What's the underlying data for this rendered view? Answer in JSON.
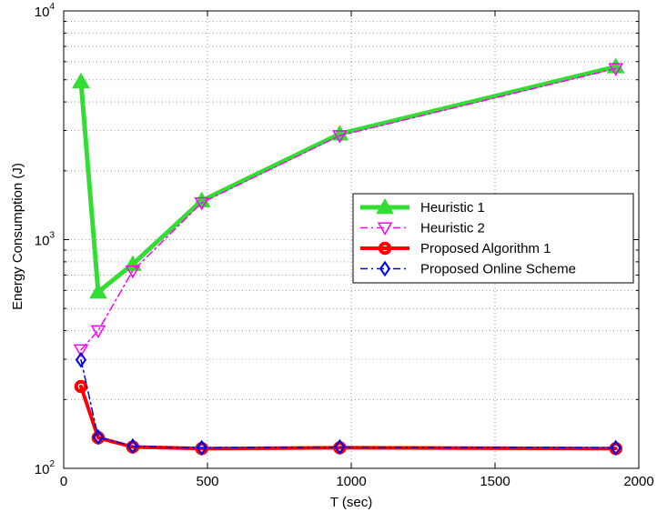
{
  "chart_data": {
    "type": "line",
    "title": "",
    "xlabel": "T (sec)",
    "ylabel": "Energy Consumption (J)",
    "xlim": [
      0,
      2000
    ],
    "ylim": [
      100,
      10000
    ],
    "yscale": "log",
    "grid": true,
    "legend_position": "center-right",
    "x_ticks": [
      0,
      500,
      1000,
      1500,
      2000
    ],
    "x_tick_labels": [
      "0",
      "500",
      "1000",
      "1500",
      "2000"
    ],
    "y_ticks": [
      100,
      1000,
      10000
    ],
    "y_tick_labels": [
      {
        "base": "10",
        "exp": "2"
      },
      {
        "base": "10",
        "exp": "3"
      },
      {
        "base": "10",
        "exp": "4"
      }
    ],
    "x": [
      60,
      120,
      240,
      480,
      960,
      1920
    ],
    "series": [
      {
        "name": "Heuristic 1",
        "values": [
          4900,
          590,
          780,
          1480,
          2900,
          5700
        ],
        "color": "#33dd33",
        "dash": "solid",
        "marker": "triangle-up",
        "width": 5
      },
      {
        "name": "Heuristic 2",
        "values": [
          330,
          400,
          730,
          1450,
          2850,
          5600
        ],
        "color": "#ff00ff",
        "dash": "dashdot",
        "marker": "triangle-down",
        "width": 1.5
      },
      {
        "name": "Proposed Algorithm 1",
        "values": [
          228,
          136,
          124,
          122,
          123,
          122
        ],
        "color": "#ff0000",
        "dash": "solid",
        "marker": "circle",
        "width": 4
      },
      {
        "name": "Proposed Online Scheme",
        "values": [
          298,
          137,
          125,
          123,
          124,
          123
        ],
        "color": "#0000ee",
        "dash": "dashdot",
        "marker": "diamond",
        "width": 1.5
      }
    ]
  }
}
